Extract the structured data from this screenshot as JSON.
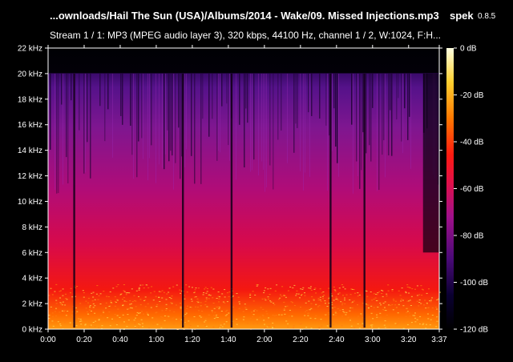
{
  "header": {
    "file_title": "...ownloads/Hail The Sun (USA)/Albums/2014 - Wake/09. Missed Injections.mp3",
    "app_name": "spek",
    "app_version": "0.8.5",
    "stream_info": "Stream 1 / 1: MP3 (MPEG audio layer 3), 320 kbps, 44100 Hz, channel 1 / 2, W:1024, F:H..."
  },
  "chart_data": {
    "type": "heatmap",
    "title": "",
    "xlabel": "",
    "ylabel": "",
    "x_ticks": [
      "0:00",
      "0:20",
      "0:40",
      "1:00",
      "1:20",
      "1:40",
      "2:00",
      "2:20",
      "2:40",
      "3:00",
      "3:20",
      "3:37"
    ],
    "x_tick_seconds": [
      0,
      20,
      40,
      60,
      80,
      100,
      120,
      140,
      160,
      180,
      200,
      217
    ],
    "xlim_seconds": [
      0,
      217
    ],
    "y_ticks": [
      "0 kHz",
      "2 kHz",
      "4 kHz",
      "6 kHz",
      "8 kHz",
      "10 kHz",
      "12 kHz",
      "14 kHz",
      "16 kHz",
      "18 kHz",
      "20 kHz",
      "22 kHz"
    ],
    "y_tick_khz": [
      0,
      2,
      4,
      6,
      8,
      10,
      12,
      14,
      16,
      18,
      20,
      22
    ],
    "ylim_khz": [
      0,
      22
    ],
    "colorbar": {
      "ticks": [
        "0 dB",
        "-20 dB",
        "-40 dB",
        "-60 dB",
        "-80 dB",
        "-100 dB",
        "-120 dB"
      ],
      "tick_db": [
        0,
        -20,
        -40,
        -60,
        -80,
        -100,
        -120
      ],
      "range_db": [
        -120,
        0
      ]
    },
    "cutoff_khz": 20,
    "quiet_segments_seconds": [
      14.5,
      74.8,
      101.8,
      156.7,
      175.5
    ],
    "colors": {
      "background": "#000000",
      "low": "#000010",
      "mid_purple": "#7a1aa0",
      "magenta": "#c8107a",
      "red": "#f01010",
      "orange": "#ff8a00",
      "yellow": "#ffff80",
      "high": "#ffffff"
    }
  }
}
